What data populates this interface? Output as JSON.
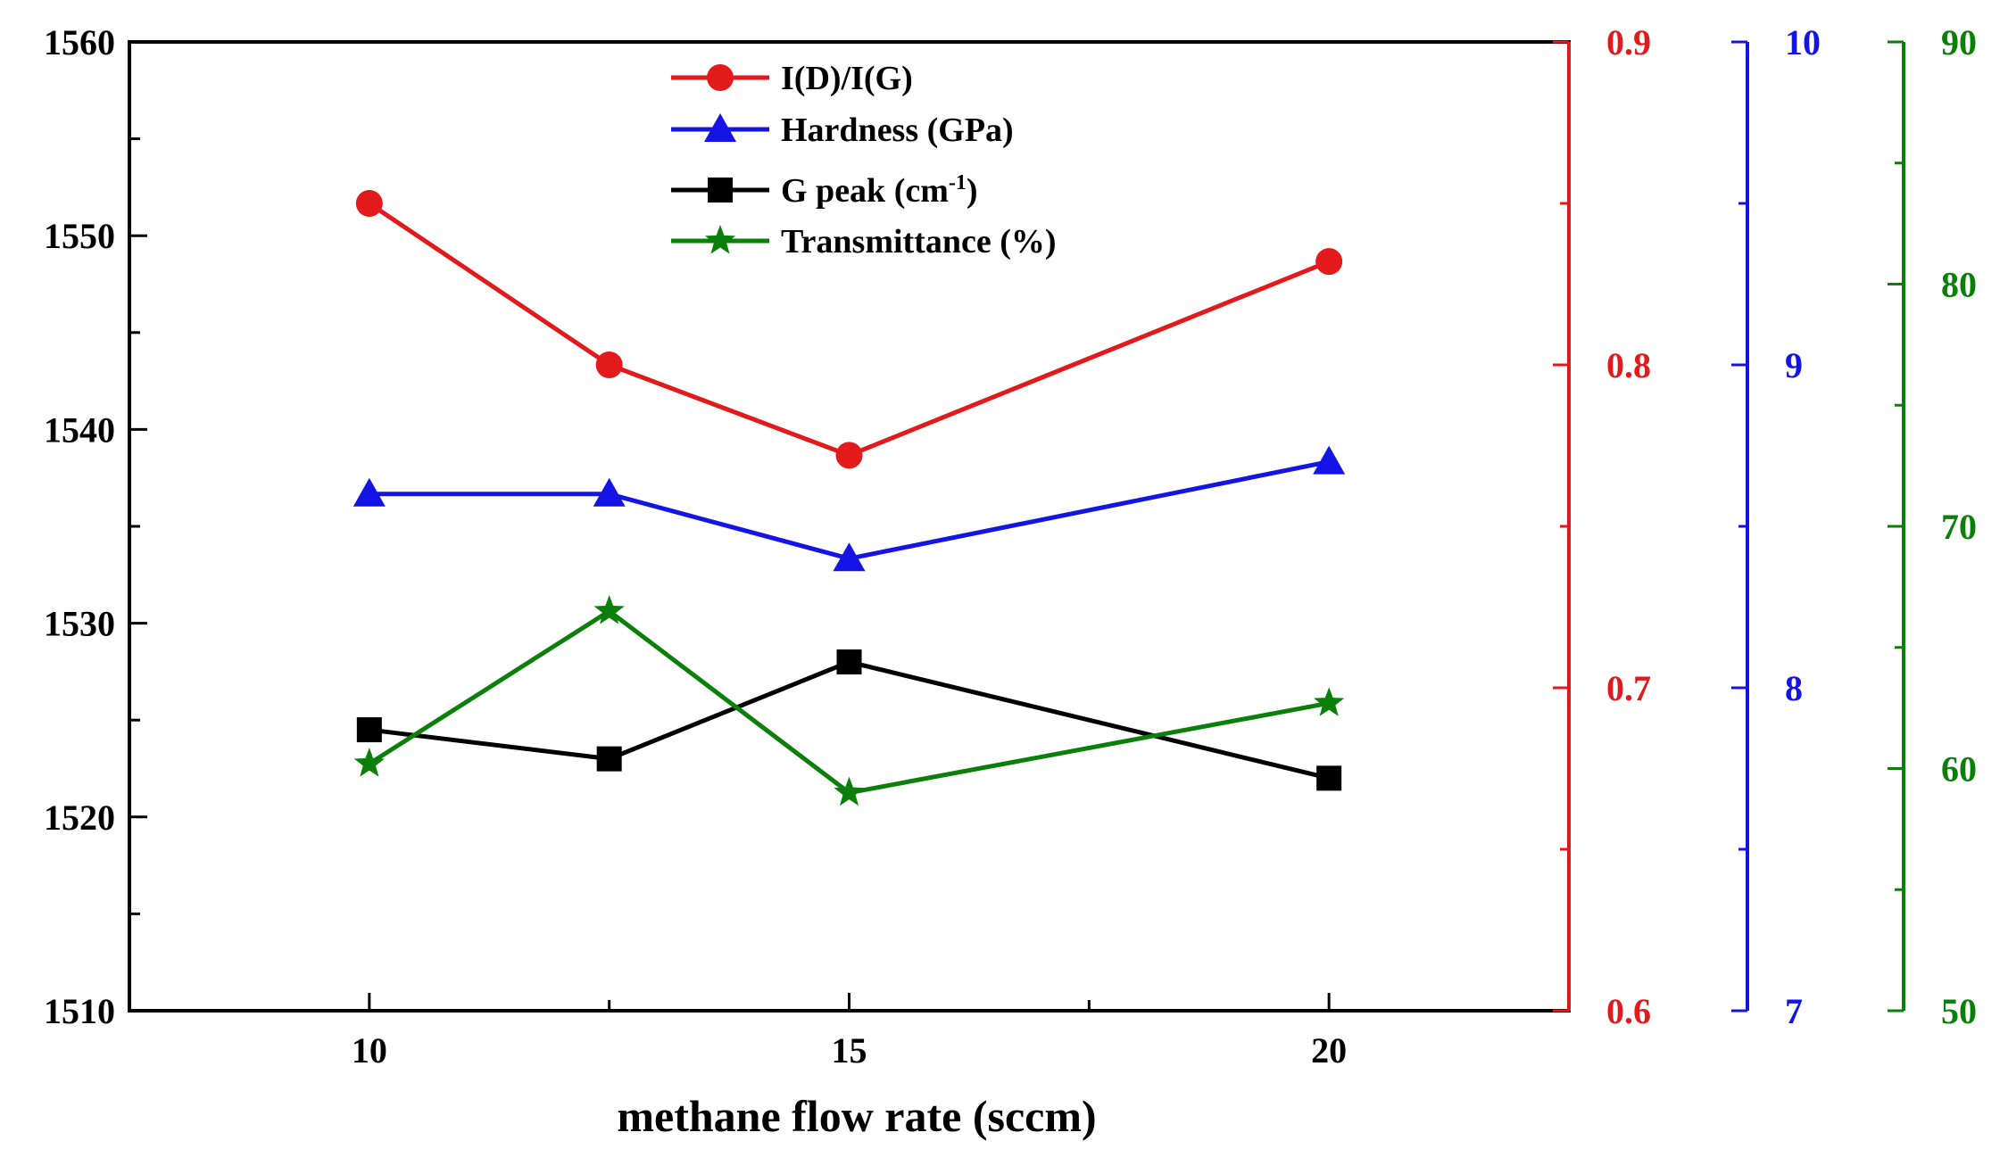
{
  "chart_data": {
    "type": "line",
    "xlabel": "methane flow rate (sccm)",
    "xlim": [
      7.5,
      22.5
    ],
    "xticks": [
      10,
      15,
      20
    ],
    "x": [
      10,
      12.5,
      15,
      20
    ],
    "axes": {
      "left": {
        "name": "G peak (cm-1)",
        "range": [
          1510,
          1560
        ],
        "ticks": [
          1510,
          1520,
          1530,
          1540,
          1550,
          1560
        ],
        "minor": 5,
        "color": "#000000"
      },
      "red": {
        "name": "I(D)/I(G)",
        "range": [
          0.6,
          0.9
        ],
        "ticks": [
          0.6,
          0.7,
          0.8,
          0.9
        ],
        "minor": 0.05,
        "color": "#e31a1c"
      },
      "blue": {
        "name": "Hardness (GPa)",
        "range": [
          7,
          10
        ],
        "ticks": [
          7,
          8,
          9,
          10
        ],
        "minor": 0.5,
        "color": "#1414e6"
      },
      "green": {
        "name": "Transmittance (%)",
        "range": [
          50,
          90
        ],
        "ticks": [
          50,
          60,
          70,
          80,
          90
        ],
        "minor": 5,
        "color": "#0a800a"
      }
    },
    "series": [
      {
        "name": "I(D)/I(G)",
        "axis": "red",
        "marker": "circle",
        "color": "#e31a1c",
        "values": [
          0.85,
          0.8,
          0.772,
          0.832
        ]
      },
      {
        "name": "Hardness (GPa)",
        "axis": "blue",
        "marker": "triangle",
        "color": "#1414e6",
        "values": [
          8.6,
          8.6,
          8.4,
          8.7
        ]
      },
      {
        "name": "G peak (cm-1)",
        "axis": "left",
        "marker": "square",
        "color": "#000000",
        "values": [
          1524.5,
          1523,
          1528,
          1522
        ]
      },
      {
        "name": "Transmittance (%)",
        "axis": "green",
        "marker": "star",
        "color": "#0a800a",
        "values": [
          60.2,
          66.5,
          59,
          62.7
        ]
      }
    ]
  },
  "legend": {
    "items": [
      {
        "label": "I(D)/I(G)",
        "marker": "circle",
        "color": "#e31a1c"
      },
      {
        "label": "Hardness (GPa)",
        "marker": "triangle",
        "color": "#1414e6"
      },
      {
        "label": "G peak (cm",
        "sup": "-1",
        "suffix": ")",
        "marker": "square",
        "color": "#000000"
      },
      {
        "label": "Transmittance (%)",
        "marker": "star",
        "color": "#0a800a"
      }
    ]
  }
}
